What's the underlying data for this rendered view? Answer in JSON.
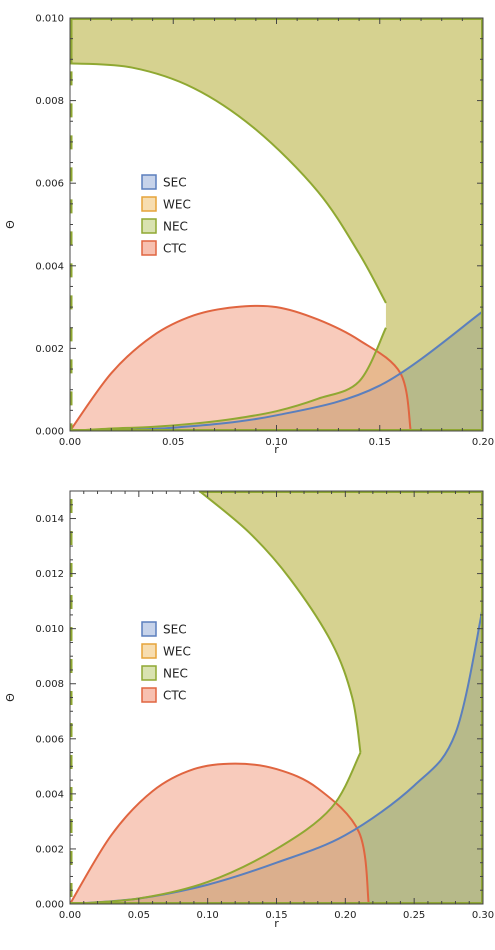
{
  "chart_data": [
    {
      "type": "area",
      "title": "",
      "xlabel": "r",
      "ylabel": "Θ",
      "xlim": [
        0,
        0.2
      ],
      "ylim": [
        0,
        0.01
      ],
      "xticks": [
        "0.00",
        "0.05",
        "0.10",
        "0.15",
        "0.20"
      ],
      "yticks": [
        "0.000",
        "0.002",
        "0.004",
        "0.006",
        "0.008",
        "0.010"
      ],
      "legend": {
        "placement": "center-left",
        "entries": [
          "SEC",
          "WEC",
          "NEC",
          "CTC"
        ]
      },
      "colors": {
        "SEC": "#5b7fbd",
        "WEC": "#e5a43a",
        "NEC": "#8fa832",
        "CTC": "#e06540"
      },
      "series": [
        {
          "name": "NEC",
          "description_points": "boundary of allowed region (below lower branch or right of nose)",
          "lower_branch": {
            "x": [
              0,
              0.02,
              0.04,
              0.06,
              0.08,
              0.1,
              0.12,
              0.14,
              0.153
            ],
            "y": [
              0,
              6e-05,
              0.0001,
              0.00018,
              0.0003,
              0.00048,
              0.00078,
              0.0012,
              0.0025
            ]
          },
          "upper_branch": {
            "x": [
              0,
              0.03,
              0.06,
              0.09,
              0.12,
              0.14,
              0.153
            ],
            "y": [
              0.0089,
              0.0088,
              0.0083,
              0.0073,
              0.0058,
              0.0043,
              0.0031
            ]
          },
          "top": 0.01,
          "left_strip_x": 0.0
        },
        {
          "name": "SEC",
          "x": [
            0.0,
            0.05,
            0.1,
            0.15,
            0.2
          ],
          "y": [
            0,
            8e-05,
            0.00038,
            0.0011,
            0.0029
          ]
        },
        {
          "name": "WEC",
          "note": "coincides with NEC/SEC overlap region",
          "x": [
            0.0,
            0.05,
            0.1,
            0.15,
            0.2
          ],
          "y": [
            0,
            8e-05,
            0.00038,
            0.0011,
            0.0029
          ]
        },
        {
          "name": "CTC",
          "x": [
            0,
            0.02,
            0.04,
            0.06,
            0.08,
            0.1,
            0.12,
            0.14,
            0.16,
            0.165
          ],
          "y": [
            0,
            0.0014,
            0.0023,
            0.0028,
            0.003,
            0.003,
            0.0027,
            0.0022,
            0.0014,
            0.0
          ]
        }
      ]
    },
    {
      "type": "area",
      "title": "",
      "xlabel": "r",
      "ylabel": "Θ",
      "xlim": [
        0,
        0.3
      ],
      "ylim": [
        0,
        0.015
      ],
      "xticks": [
        "0.00",
        "0.05",
        "0.10",
        "0.15",
        "0.20",
        "0.25",
        "0.30"
      ],
      "yticks": [
        "0.000",
        "0.002",
        "0.004",
        "0.006",
        "0.008",
        "0.010",
        "0.012",
        "0.014"
      ],
      "legend": {
        "placement": "center-left",
        "entries": [
          "SEC",
          "WEC",
          "NEC",
          "CTC"
        ]
      },
      "colors": {
        "SEC": "#5b7fbd",
        "WEC": "#e5a43a",
        "NEC": "#8fa832",
        "CTC": "#e06540"
      },
      "series": [
        {
          "name": "NEC",
          "lower_branch": {
            "x": [
              0,
              0.05,
              0.1,
              0.15,
              0.19,
              0.211
            ],
            "y": [
              0,
              0.0002,
              0.0008,
              0.002,
              0.0035,
              0.0055
            ]
          },
          "upper_branch": {
            "x": [
              0.094,
              0.13,
              0.16,
              0.19,
              0.205,
              0.211
            ],
            "y": [
              0.015,
              0.0135,
              0.0118,
              0.0095,
              0.0075,
              0.0055
            ]
          },
          "top": 0.015,
          "left_strip_x": 0.0
        },
        {
          "name": "SEC",
          "x": [
            0.0,
            0.05,
            0.1,
            0.15,
            0.2,
            0.25,
            0.28,
            0.3
          ],
          "y": [
            0,
            0.0002,
            0.0007,
            0.0015,
            0.0025,
            0.0043,
            0.0062,
            0.0108
          ]
        },
        {
          "name": "WEC",
          "x": [
            0.0,
            0.05,
            0.1,
            0.15,
            0.2,
            0.25,
            0.28,
            0.3
          ],
          "y": [
            0,
            0.0002,
            0.0007,
            0.0015,
            0.0025,
            0.0043,
            0.0062,
            0.0108
          ]
        },
        {
          "name": "CTC",
          "x": [
            0,
            0.03,
            0.06,
            0.09,
            0.12,
            0.15,
            0.18,
            0.21,
            0.217
          ],
          "y": [
            0,
            0.0025,
            0.0041,
            0.0049,
            0.0051,
            0.0049,
            0.0042,
            0.0026,
            0.0
          ]
        }
      ]
    }
  ]
}
